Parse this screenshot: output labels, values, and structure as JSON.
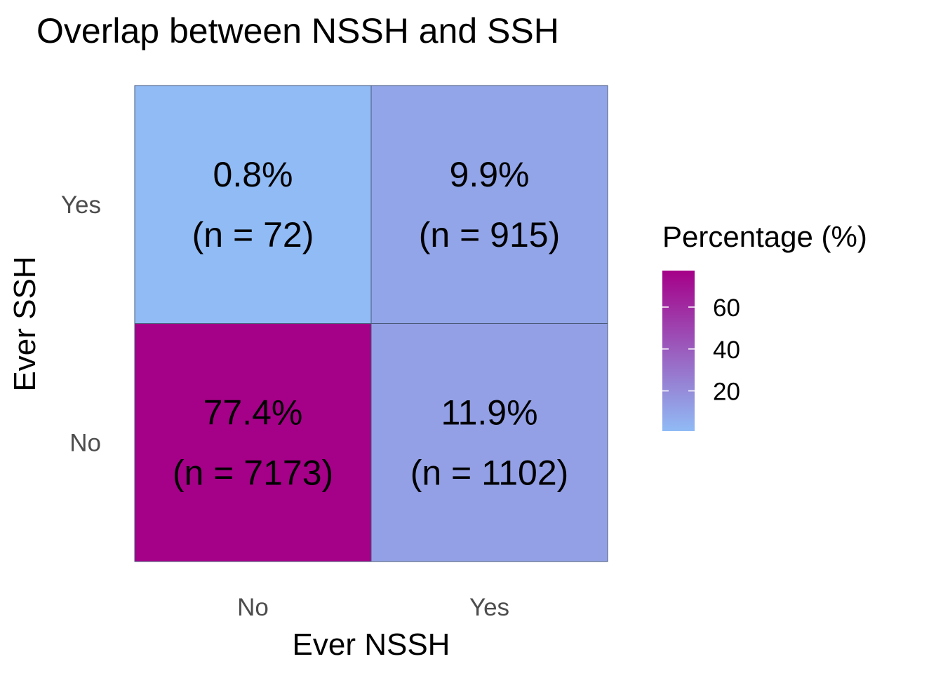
{
  "chart_data": {
    "type": "heatmap",
    "title": "Overlap between NSSH and SSH",
    "xlabel": "Ever NSSH",
    "ylabel": "Ever SSH",
    "x_categories": [
      "No",
      "Yes"
    ],
    "y_categories": [
      "No",
      "Yes"
    ],
    "cells": [
      {
        "x": "No",
        "y": "Yes",
        "value": 0.8,
        "line1": "0.8%",
        "line2": "(n = 72)"
      },
      {
        "x": "Yes",
        "y": "Yes",
        "value": 9.9,
        "line1": "9.9%",
        "line2": "(n = 915)"
      },
      {
        "x": "No",
        "y": "No",
        "value": 77.4,
        "line1": "77.4%",
        "line2": "(n = 7173)"
      },
      {
        "x": "Yes",
        "y": "No",
        "value": 11.9,
        "line1": "11.9%",
        "line2": "(n = 1102)"
      }
    ],
    "legend": {
      "title": "Percentage (%)",
      "placement": "right",
      "ticks": [
        20,
        40,
        60
      ],
      "tick_labels": [
        "20",
        "40",
        "60"
      ],
      "range": [
        0.8,
        77.4
      ],
      "low_color": "#90bbf5",
      "high_color": "#a50088"
    },
    "grid": false
  }
}
